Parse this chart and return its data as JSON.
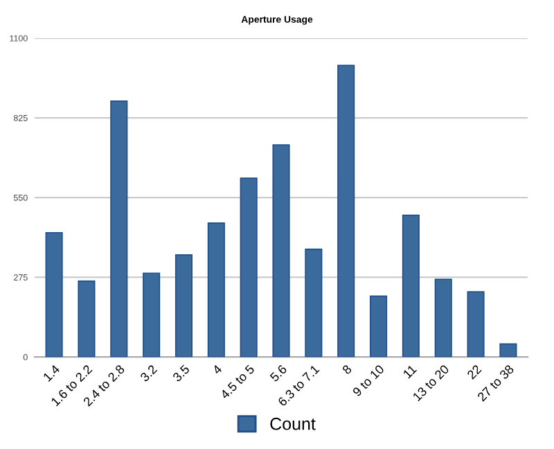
{
  "chart_data": {
    "type": "bar",
    "title": "Aperture Usage",
    "categories": [
      "1.4",
      "1.6 to 2.2",
      "2.4 to 2.8",
      "3.2",
      "3.5",
      "4",
      "4.5 to 5",
      "5.6",
      "6.3 to 7.1",
      "8",
      "9 to 10",
      "11",
      "13 to 20",
      "22",
      "27 to 38"
    ],
    "series": [
      {
        "name": "Count",
        "color": "#3b6a9d",
        "values": [
          429,
          262,
          883,
          289,
          352,
          462,
          617,
          732,
          372,
          1006,
          210,
          489,
          268,
          225,
          45
        ]
      }
    ],
    "ylim": [
      0,
      1100
    ],
    "yticks": [
      0,
      275,
      550,
      825,
      1100
    ],
    "grid": "y",
    "legend": "bottom"
  }
}
